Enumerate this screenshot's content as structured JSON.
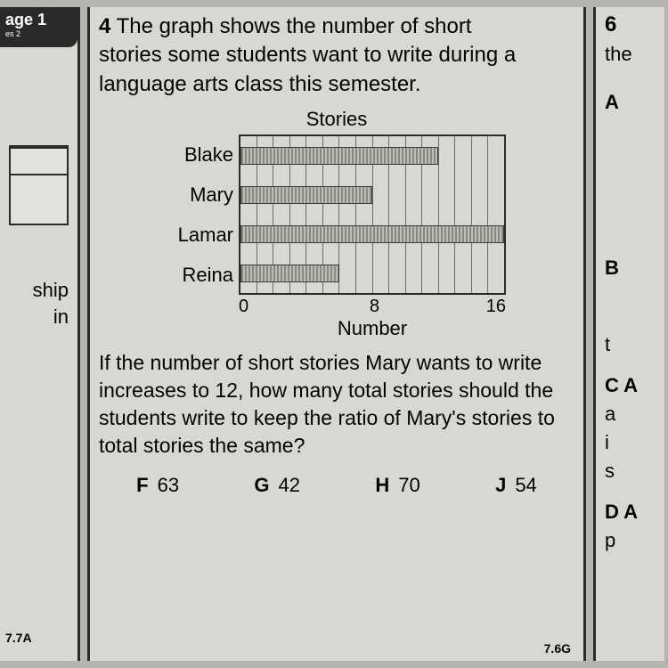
{
  "left": {
    "tab": "age 1",
    "tab_sub": "es 2",
    "frag1": "ship",
    "frag2": "in",
    "standard": "7.7A"
  },
  "question": {
    "number": "4",
    "text_line1": "The graph shows the number of short",
    "text_line2": "stories some students want to write during a",
    "text_line3": "language arts class this semester.",
    "followup": "If the number of short stories Mary wants to write increases to 12, how many total stories should the students write to keep the ratio of Mary's stories to total stories the same?",
    "standard": "7.6G"
  },
  "chart": {
    "type": "bar-horizontal",
    "title": "Stories",
    "xlabel": "Number",
    "xmin": 0,
    "xmax": 16,
    "xticks": [
      "0",
      "8",
      "16"
    ],
    "gridlines": 16,
    "categories": [
      "Blake",
      "Mary",
      "Lamar",
      "Reina"
    ],
    "values": [
      12,
      8,
      16,
      6
    ],
    "bar_color": "#8a8a84",
    "grid_color": "#6a6a6a",
    "border_color": "#2a2a2a",
    "background_color": "#d8d8d2",
    "label_fontsize": 22
  },
  "answers": {
    "F": "63",
    "G": "42",
    "H": "70",
    "J": "54"
  },
  "right": {
    "qnum": "6",
    "frag": "the",
    "optA": "A",
    "optB": "B",
    "fragC": "C A",
    "fragD": "D A",
    "frag_a": "a",
    "frag_i": "i",
    "frag_s": "s",
    "frag_p": "p",
    "frag_t": "t"
  }
}
